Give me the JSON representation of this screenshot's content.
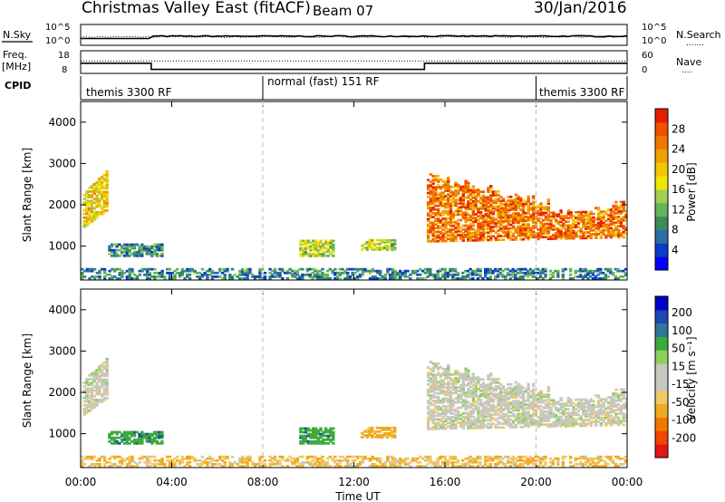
{
  "header": {
    "title": "Christmas Valley East (fitACF)",
    "beam": "Beam 07",
    "date": "30/Jan/2016"
  },
  "top_panel": {
    "left_label": "N.Sky",
    "left_ticks": [
      "10^5",
      "10^0"
    ],
    "right_ticks": [
      "10^5",
      "10^0"
    ],
    "right_label": "N.Search",
    "right_line_marker": "......."
  },
  "freq_panel": {
    "left_label_line1": "Freq.",
    "left_label_line2": "[MHz]",
    "left_ticks": [
      "18",
      "8"
    ],
    "right_ticks": [
      "60",
      "0"
    ],
    "right_label": "Nave",
    "right_line_marker": "....",
    "cpid_label": "CPID"
  },
  "cpid_segments": [
    {
      "label": "themis 3300 RF",
      "start_hour": 0
    },
    {
      "label": "normal (fast) 151 RF",
      "start_hour": 8
    },
    {
      "label": "themis 3300 RF",
      "start_hour": 20
    }
  ],
  "x_axis": {
    "label": "Time UT",
    "ticks": [
      "00:00",
      "04:00",
      "08:00",
      "12:00",
      "16:00",
      "20:00",
      "00:00"
    ]
  },
  "power_panel": {
    "ylabel": "Slant Range [km]",
    "yticks": [
      "1000",
      "2000",
      "3000",
      "4000"
    ],
    "colorbar_label": "Power [dB]",
    "colorbar_ticks": [
      "4",
      "8",
      "12",
      "16",
      "20",
      "24",
      "28"
    ],
    "colors": [
      "#0000ff",
      "#0a3cc8",
      "#2a6ea8",
      "#3c8c5a",
      "#64b45a",
      "#a0d050",
      "#f0e600",
      "#f0c800",
      "#f0a000",
      "#f07800",
      "#f05000",
      "#e61e00"
    ]
  },
  "velocity_panel": {
    "ylabel": "Slant Range [km]",
    "yticks": [
      "1000",
      "2000",
      "3000",
      "4000"
    ],
    "colorbar_label": "Velocity [m s⁻¹]",
    "colorbar_ticks": [
      "200",
      "100",
      "50",
      "15",
      "-15",
      "-50",
      "-100",
      "-200"
    ],
    "colors": [
      "#0000c8",
      "#1e46b4",
      "#2d7896",
      "#3caa3c",
      "#8cd25a",
      "#c8c8be",
      "#c8c8be",
      "#f0c864",
      "#f0aa1e",
      "#f07800",
      "#f04600",
      "#e61414"
    ]
  },
  "chart_data": {
    "type": "heatmap",
    "xlabel": "Time UT",
    "ylabel": "Slant Range [km]",
    "xlim_hours": [
      0,
      24
    ],
    "ylim_km": [
      180,
      4500
    ],
    "cpid_changes_hours": [
      8,
      20
    ],
    "frequency_profile_mhz": [
      {
        "from_hour": 0,
        "to_hour": 3.1,
        "value": 14
      },
      {
        "from_hour": 3.1,
        "to_hour": 15.1,
        "value": 10
      },
      {
        "from_hour": 15.1,
        "to_hour": 24,
        "value": 14
      }
    ],
    "nave_level": 45,
    "echo_regions": [
      {
        "name": "Near range band",
        "t": [
          0,
          24
        ],
        "r": [
          200,
          450
        ],
        "power_db": 8,
        "velocity": -30
      },
      {
        "name": "Early evening patch",
        "t": [
          0.1,
          1.1
        ],
        "r": [
          1400,
          2900
        ],
        "power_db": 18,
        "velocity": 0
      },
      {
        "name": "Morning band",
        "t": [
          1.2,
          3.6
        ],
        "r": [
          750,
          1050
        ],
        "power_db": 8,
        "velocity": 60
      },
      {
        "name": "Mid-morning patch",
        "t": [
          9.6,
          11.1
        ],
        "r": [
          750,
          1150
        ],
        "power_db": 14,
        "velocity": 60
      },
      {
        "name": "Midday patch",
        "t": [
          12.3,
          13.8
        ],
        "r": [
          900,
          1150
        ],
        "power_db": 14,
        "velocity": -45
      },
      {
        "name": "Afternoon main band",
        "t": [
          15.2,
          24
        ],
        "r": [
          1000,
          2700
        ],
        "power_db": 24,
        "velocity": 0
      }
    ]
  }
}
